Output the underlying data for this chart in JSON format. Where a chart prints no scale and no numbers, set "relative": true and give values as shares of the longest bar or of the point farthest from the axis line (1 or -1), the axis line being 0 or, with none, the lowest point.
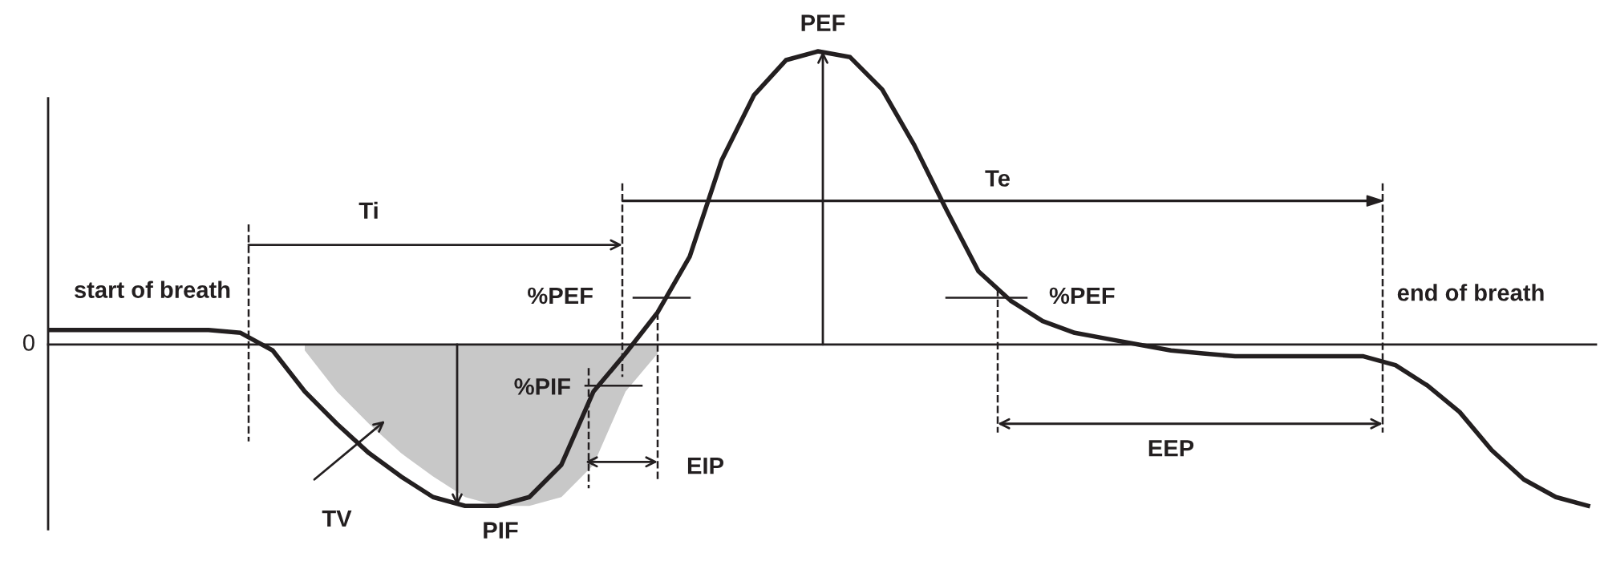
{
  "chart_data": {
    "type": "line",
    "relative": true,
    "categories": [
      null,
      null,
      null,
      null,
      null,
      null,
      null,
      null,
      null,
      null,
      null,
      null,
      null,
      null,
      null,
      null,
      null,
      null,
      null,
      null,
      null,
      null,
      null,
      null,
      null,
      null,
      null,
      null,
      null,
      null,
      null,
      null,
      null,
      null,
      null,
      null,
      null,
      null,
      null,
      null,
      null,
      null,
      null,
      null,
      null,
      null,
      null,
      null,
      null
    ],
    "series": [
      {
        "type": "area",
        "color": "#c8c8c8",
        "values": [
          null,
          null,
          null,
          null,
          null,
          null,
          null,
          null,
          -0.02,
          -0.16,
          -0.27,
          -0.37,
          -0.45,
          -0.52,
          -0.55,
          -0.55,
          -0.52,
          -0.41,
          -0.16,
          -0.03,
          null,
          null,
          null,
          null,
          null,
          null,
          null,
          null,
          null,
          null,
          null,
          null,
          null,
          null,
          null,
          null,
          null,
          null,
          null,
          null,
          null,
          null,
          null,
          null,
          null,
          null,
          null,
          null,
          null
        ]
      },
      {
        "color": "#231f20",
        "values": [
          0.05,
          0.05,
          0.05,
          0.05,
          0.05,
          0.05,
          0.04,
          -0.02,
          -0.16,
          -0.27,
          -0.37,
          -0.45,
          -0.52,
          -0.55,
          -0.55,
          -0.52,
          -0.41,
          -0.16,
          -0.03,
          0.11,
          0.3,
          0.63,
          0.85,
          0.97,
          1.0,
          0.98,
          0.87,
          0.68,
          0.46,
          0.25,
          0.15,
          0.08,
          0.04,
          0.02,
          0,
          -0.02,
          -0.03,
          -0.04,
          -0.04,
          -0.04,
          -0.04,
          -0.04,
          -0.07,
          -0.14,
          -0.23,
          -0.36,
          -0.46,
          -0.52,
          -0.55
        ]
      }
    ],
    "annotations": [
      "0",
      "start of breath",
      "Ti",
      "Te",
      "PEF",
      "%PEF",
      "%PEF",
      "%PIF",
      "PIF",
      "TV",
      "EIP",
      "EEP",
      "end of breath"
    ],
    "marker": "none",
    "line_style": "solid"
  }
}
